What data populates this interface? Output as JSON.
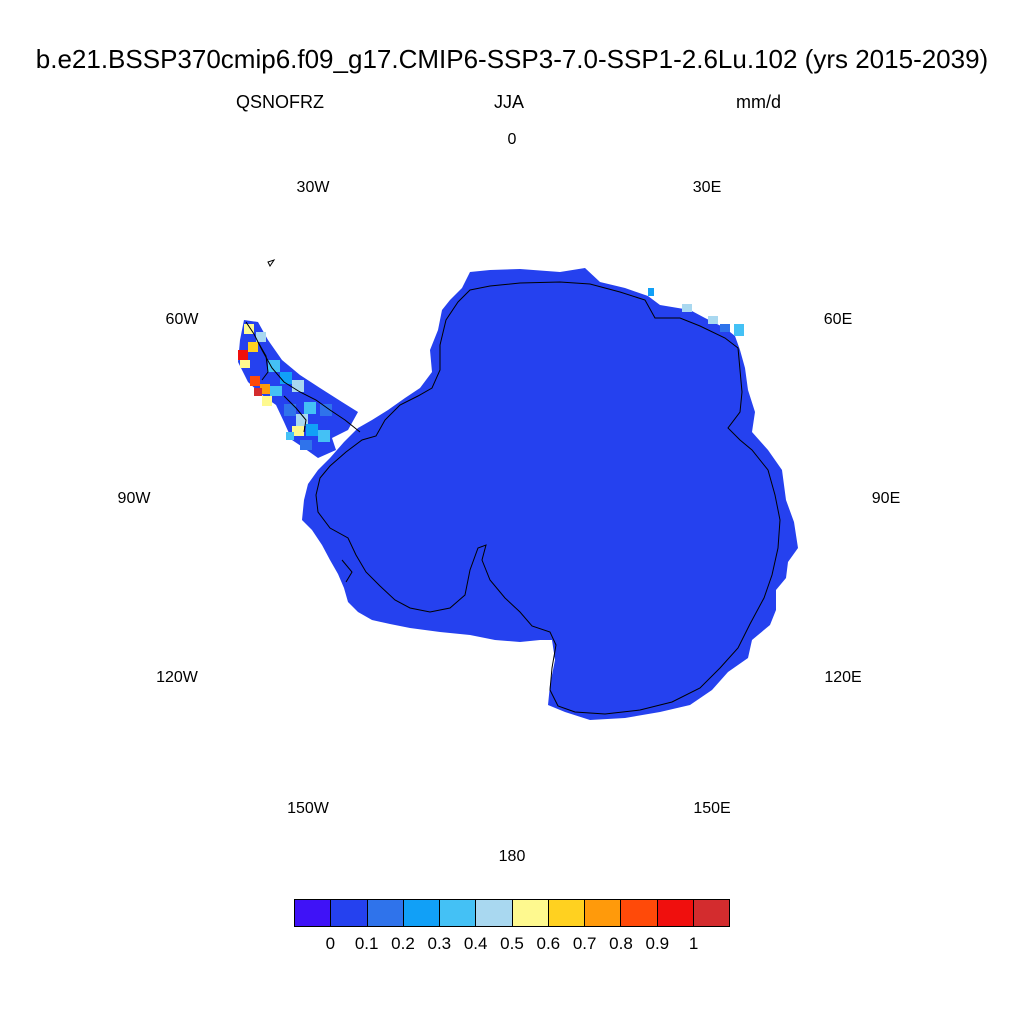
{
  "title": "b.e21.BSSP370cmip6.f09_g17.CMIP6-SSP3-7.0-SSP1-2.6Lu.102 (yrs 2015-2039)",
  "subtitle": {
    "left": "QSNOFRZ",
    "center": "JJA",
    "right": "mm/d"
  },
  "longitude_labels": {
    "lon_0": "0",
    "lon_30e": "30E",
    "lon_60e": "60E",
    "lon_90e": "90E",
    "lon_120e": "120E",
    "lon_150e": "150E",
    "lon_180": "180",
    "lon_150w": "150W",
    "lon_120w": "120W",
    "lon_90w": "90W",
    "lon_60w": "60W",
    "lon_30w": "30W"
  },
  "colorbar": {
    "colors": [
      "#3f12f7",
      "#2541ef",
      "#2f73eb",
      "#11a0f7",
      "#44c1f5",
      "#a9d8f0",
      "#fef98f",
      "#ffd120",
      "#ff9a0b",
      "#ff4a09",
      "#f00f0d",
      "#d32c2e"
    ],
    "labels": [
      "0",
      "0.1",
      "0.2",
      "0.3",
      "0.4",
      "0.5",
      "0.6",
      "0.7",
      "0.8",
      "0.9",
      "1"
    ]
  },
  "map": {
    "projection": "south polar stereographic",
    "region": "Antarctica",
    "dominant_color": "#2541ef",
    "peninsula_colors": [
      "#44c1f5",
      "#a9d8f0",
      "#fef98f",
      "#ffd120",
      "#ff9a0b",
      "#ff4a09",
      "#f00f0d",
      "#11a0f7",
      "#2f73eb"
    ]
  }
}
